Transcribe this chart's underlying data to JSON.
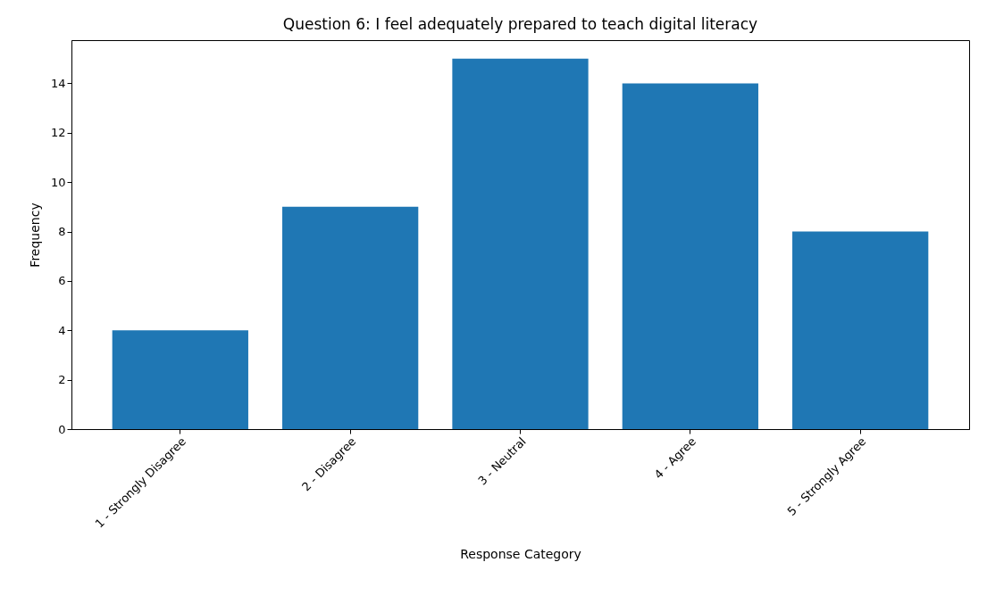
{
  "chart_data": {
    "type": "bar",
    "title": "Question 6: I feel adequately prepared to teach digital literacy",
    "xlabel": "Response Category",
    "ylabel": "Frequency",
    "categories": [
      "1 - Strongly Disagree",
      "2 - Disagree",
      "3 - Neutral",
      "4 - Agree",
      "5 - Strongly Agree"
    ],
    "values": [
      4,
      9,
      15,
      14,
      8
    ],
    "color": "#1f77b4",
    "ylim": [
      0,
      15.75
    ],
    "yticks": [
      0,
      2,
      4,
      6,
      8,
      10,
      12,
      14
    ],
    "grid": false
  }
}
